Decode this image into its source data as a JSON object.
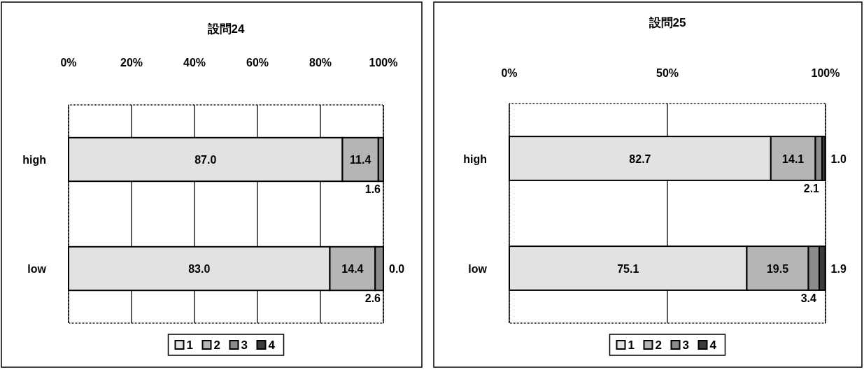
{
  "chart_data": [
    {
      "type": "bar",
      "title": "設問24",
      "orientation": "horizontal",
      "stacked": true,
      "categories": [
        "high",
        "low"
      ],
      "xlim": [
        0,
        100
      ],
      "xticks": [
        {
          "value": 0,
          "label": "0%"
        },
        {
          "value": 20,
          "label": "20%"
        },
        {
          "value": 40,
          "label": "40%"
        },
        {
          "value": 60,
          "label": "60%"
        },
        {
          "value": 80,
          "label": "80%"
        },
        {
          "value": 100,
          "label": "100%"
        }
      ],
      "grid": "x",
      "legend": "bottom",
      "series": [
        {
          "name": "1",
          "color": "#e2e2e2",
          "values": [
            87.0,
            83.0
          ],
          "value_labels": [
            "87.0",
            "83.0"
          ]
        },
        {
          "name": "2",
          "color": "#b5b5b5",
          "values": [
            11.4,
            14.4
          ],
          "value_labels": [
            "11.4",
            "14.4"
          ]
        },
        {
          "name": "3",
          "color": "#8c8c8c",
          "values": [
            1.6,
            2.6
          ],
          "value_labels": [
            "1.6",
            "2.6"
          ]
        },
        {
          "name": "4",
          "color": "#3a3a3a",
          "values": [
            0.0,
            0.0
          ],
          "value_labels": [
            null,
            "0.0"
          ]
        }
      ]
    },
    {
      "type": "bar",
      "title": "設問25",
      "orientation": "horizontal",
      "stacked": true,
      "categories": [
        "high",
        "low"
      ],
      "xlim": [
        0,
        100
      ],
      "xticks": [
        {
          "value": 0,
          "label": "0%"
        },
        {
          "value": 50,
          "label": "50%"
        },
        {
          "value": 100,
          "label": "100%"
        }
      ],
      "grid": "x",
      "legend": "bottom",
      "series": [
        {
          "name": "1",
          "color": "#e2e2e2",
          "values": [
            82.7,
            75.1
          ],
          "value_labels": [
            "82.7",
            "75.1"
          ]
        },
        {
          "name": "2",
          "color": "#b5b5b5",
          "values": [
            14.1,
            19.5
          ],
          "value_labels": [
            "14.1",
            "19.5"
          ]
        },
        {
          "name": "3",
          "color": "#8c8c8c",
          "values": [
            2.1,
            3.4
          ],
          "value_labels": [
            "2.1",
            "3.4"
          ]
        },
        {
          "name": "4",
          "color": "#3a3a3a",
          "values": [
            1.0,
            1.9
          ],
          "value_labels": [
            "1.0",
            "1.9"
          ]
        }
      ]
    }
  ]
}
